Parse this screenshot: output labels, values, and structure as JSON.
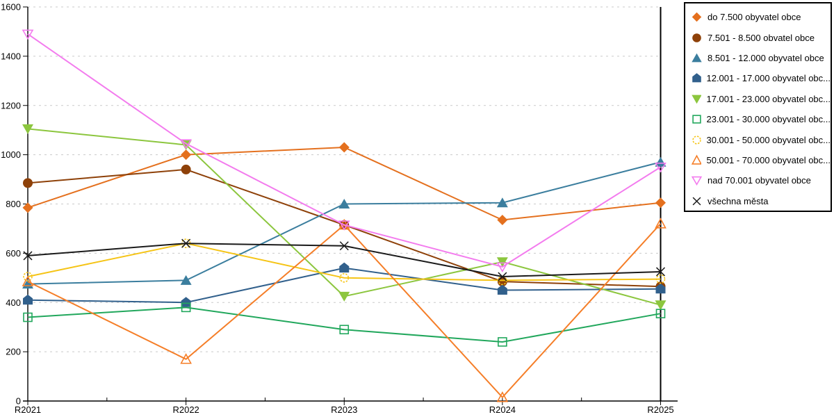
{
  "chart_data": {
    "type": "line",
    "title": "",
    "xlabel": "",
    "ylabel": "",
    "categories": [
      "R2021",
      "R2022",
      "R2023",
      "R2024",
      "R2025"
    ],
    "ylim": [
      0,
      1600
    ],
    "yticks": [
      0,
      200,
      400,
      600,
      800,
      1000,
      1200,
      1400,
      1600
    ],
    "grid": "horizontal-dashed",
    "gridline_color": "#c9c9c9",
    "axis_color": "#000000",
    "legend_position": "right",
    "series": [
      {
        "name": "do 7.500 obyvatel obce",
        "marker": "diamond",
        "filled": true,
        "color": "#E4701E",
        "values": [
          785,
          1000,
          1030,
          735,
          805
        ]
      },
      {
        "name": "7.501 - 8.500 obvatel obce",
        "marker": "circle",
        "filled": true,
        "color": "#8E4109",
        "values": [
          885,
          940,
          715,
          485,
          465
        ]
      },
      {
        "name": "8.501 - 12.000 obyvatel obce",
        "marker": "triangle-up",
        "filled": true,
        "color": "#3B7E9E",
        "values": [
          475,
          490,
          800,
          805,
          970
        ]
      },
      {
        "name": "12.001 - 17.000 obyvatel obc...",
        "marker": "pentagon",
        "filled": true,
        "color": "#31608C",
        "values": [
          410,
          400,
          540,
          450,
          455
        ]
      },
      {
        "name": "17.001 - 23.000 obyvatel obc...",
        "marker": "triangle-down",
        "filled": true,
        "color": "#8CC63E",
        "values": [
          1105,
          1040,
          425,
          565,
          390
        ]
      },
      {
        "name": "23.001 - 30.000 obyvatel obc...",
        "marker": "square-open",
        "filled": false,
        "color": "#21A75C",
        "values": [
          340,
          380,
          290,
          240,
          355
        ]
      },
      {
        "name": "30.001 - 50.000 obyvatel obc...",
        "marker": "circle-open",
        "filled": false,
        "color": "#F5C416",
        "values": [
          505,
          640,
          500,
          490,
          495
        ]
      },
      {
        "name": "50.001 - 70.000 obyvatel obc...",
        "marker": "triangle-up-open",
        "filled": false,
        "color": "#F57E28",
        "values": [
          485,
          170,
          715,
          15,
          720
        ]
      },
      {
        "name": "nad 70.001 obyvatel obce",
        "marker": "triangle-down-open",
        "filled": false,
        "color": "#F37BEE",
        "values": [
          1490,
          1045,
          715,
          545,
          950
        ]
      },
      {
        "name": "všechna města",
        "marker": "x-cross",
        "filled": false,
        "color": "#1A1A1A",
        "values": [
          590,
          640,
          630,
          505,
          525
        ]
      }
    ]
  }
}
